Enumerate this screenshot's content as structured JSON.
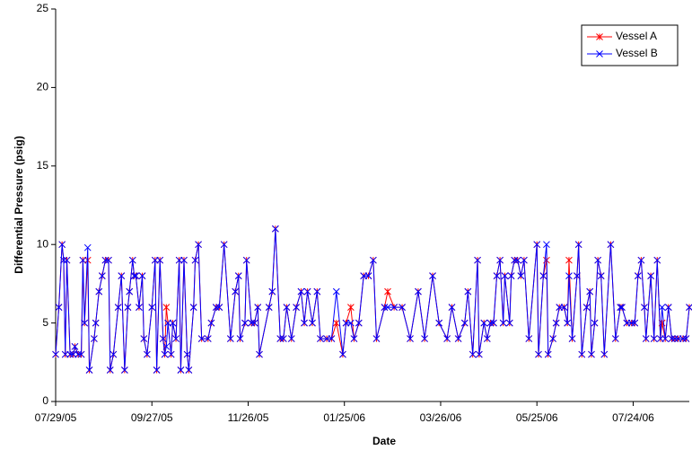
{
  "chart_data": {
    "type": "line",
    "xlabel": "Date",
    "ylabel": "Differential Pressure (psig)",
    "x": [
      "07/29/05",
      "07/31/05",
      "08/02/05",
      "08/03/05",
      "08/04/05",
      "08/05/05",
      "08/07/05",
      "08/09/05",
      "08/10/05",
      "08/12/05",
      "08/14/05",
      "08/15/05",
      "08/16/05",
      "08/18/05",
      "08/19/05",
      "08/22/05",
      "08/23/05",
      "08/25/05",
      "08/27/05",
      "08/29/05",
      "08/31/05",
      "09/01/05",
      "09/03/05",
      "09/06/05",
      "09/08/05",
      "09/10/05",
      "09/12/05",
      "09/13/05",
      "09/15/05",
      "09/16/05",
      "09/17/05",
      "09/19/05",
      "09/21/05",
      "09/22/05",
      "09/24/05",
      "09/27/05",
      "09/29/05",
      "09/30/05",
      "10/02/05",
      "10/04/05",
      "10/05/05",
      "10/06/05",
      "10/07/05",
      "10/09/05",
      "10/10/05",
      "10/12/05",
      "10/14/05",
      "10/15/05",
      "10/17/05",
      "10/19/05",
      "10/20/05",
      "10/23/05",
      "10/24/05",
      "10/26/05",
      "10/28/05",
      "11/01/05",
      "11/03/05",
      "11/06/05",
      "11/08/05",
      "11/11/05",
      "11/15/05",
      "11/18/05",
      "11/20/05",
      "11/21/05",
      "11/24/05",
      "11/25/05",
      "11/28/05",
      "11/30/05",
      "12/02/05",
      "12/03/05",
      "12/09/05",
      "12/11/05",
      "12/13/05",
      "12/16/05",
      "12/18/05",
      "12/20/05",
      "12/23/05",
      "12/26/05",
      "12/29/05",
      "12/31/05",
      "01/02/06",
      "01/05/06",
      "01/08/06",
      "01/10/06",
      "01/14/06",
      "01/17/06",
      "01/20/06",
      "01/24/06",
      "01/26/06",
      "01/29/06",
      "01/31/06",
      "02/03/06",
      "02/06/06",
      "02/09/06",
      "02/12/06",
      "02/14/06",
      "02/19/06",
      "02/21/06",
      "02/25/06",
      "03/02/06",
      "03/07/06",
      "03/12/06",
      "03/16/06",
      "03/21/06",
      "03/25/06",
      "03/30/06",
      "04/02/06",
      "04/06/06",
      "04/10/06",
      "04/12/06",
      "04/15/06",
      "04/18/06",
      "04/19/06",
      "04/22/06",
      "04/24/06",
      "04/26/06",
      "04/28/06",
      "04/30/06",
      "05/02/06",
      "05/04/06",
      "05/05/06",
      "05/08/06",
      "05/09/06",
      "05/11/06",
      "05/13/06",
      "05/15/06",
      "05/17/06",
      "05/20/06",
      "05/25/06",
      "05/26/06",
      "05/29/06",
      "05/31/06",
      "06/01/06",
      "06/04/06",
      "06/06/06",
      "06/08/06",
      "06/11/06",
      "06/13/06",
      "06/14/06",
      "06/16/06",
      "06/19/06",
      "06/20/06",
      "06/22/06",
      "06/25/06",
      "06/27/06",
      "06/28/06",
      "06/30/06",
      "07/02/06",
      "07/04/06",
      "07/06/06",
      "07/10/06",
      "07/13/06",
      "07/16/06",
      "07/17/06",
      "07/20/06",
      "07/23/06",
      "07/25/06",
      "07/27/06",
      "07/29/06",
      "07/31/06",
      "08/01/06",
      "08/04/06",
      "08/06/06",
      "08/08/06",
      "08/10/06",
      "08/11/06",
      "08/13/06",
      "08/15/06",
      "08/17/06",
      "08/19/06",
      "08/21/06",
      "08/24/06",
      "08/26/06",
      "08/28/06"
    ],
    "series": [
      {
        "name": "Vessel A",
        "color": "#ff0000",
        "marker": "asterisk",
        "values": [
          3,
          6,
          10,
          9,
          3,
          9,
          3,
          3,
          3.5,
          3,
          3,
          9,
          5,
          9,
          2,
          4,
          5,
          7,
          8,
          9,
          9,
          2,
          3,
          6,
          8,
          2,
          6,
          7,
          9,
          8,
          8,
          6,
          8,
          4,
          3,
          6,
          9,
          2,
          9,
          4,
          3,
          6,
          5,
          3,
          5,
          4,
          9,
          2,
          9,
          3,
          2,
          6,
          9,
          10,
          4,
          4,
          5,
          6,
          6,
          10,
          4,
          7,
          8,
          4,
          5,
          9,
          5,
          5,
          6,
          3,
          6,
          7,
          11,
          4,
          4,
          6,
          4,
          6,
          7,
          5,
          7,
          5,
          7,
          4,
          4,
          4,
          5,
          3,
          5,
          6,
          4,
          5,
          8,
          8,
          9,
          4,
          6,
          7,
          6,
          6,
          4,
          7,
          4,
          8,
          5,
          4,
          6,
          4,
          5,
          7,
          3,
          9,
          3,
          5,
          4,
          5,
          5,
          8,
          9,
          5,
          8,
          5,
          8,
          9,
          9,
          8,
          9,
          4,
          10,
          3,
          8,
          9,
          3,
          4,
          5,
          6,
          6,
          5,
          9,
          4,
          8,
          10,
          3,
          6,
          7,
          3,
          5,
          9,
          8,
          3,
          10,
          4,
          6,
          6,
          5,
          5,
          5,
          8,
          9,
          6,
          4,
          8,
          4,
          9,
          4,
          5,
          4,
          6,
          4,
          4,
          4,
          4,
          4,
          6
        ]
      },
      {
        "name": "Vessel B",
        "color": "#0000ff",
        "marker": "x",
        "values": [
          3,
          6,
          10,
          9,
          3,
          9,
          3,
          3,
          3.5,
          3,
          3,
          9,
          5,
          9.8,
          2,
          4,
          5,
          7,
          8,
          9,
          9,
          2,
          3,
          6,
          8,
          2,
          6,
          7,
          9,
          8,
          8,
          6,
          8,
          4,
          3,
          6,
          9,
          2,
          9,
          4,
          3,
          3.5,
          5,
          3,
          5,
          4,
          9,
          2,
          9,
          3,
          2,
          6,
          9,
          10,
          4,
          4,
          5,
          6,
          6,
          10,
          4,
          7,
          8,
          4,
          5,
          9,
          5,
          5,
          6,
          3,
          6,
          7,
          11,
          4,
          4,
          6,
          4,
          6,
          7,
          5,
          7,
          5,
          7,
          4,
          4,
          4,
          7,
          3,
          5,
          5,
          4,
          5,
          8,
          8,
          9,
          4,
          6,
          6,
          6,
          6,
          4,
          7,
          4,
          8,
          5,
          4,
          6,
          4,
          5,
          7,
          3,
          9,
          3,
          5,
          4,
          5,
          5,
          8,
          9,
          5,
          8,
          5,
          8,
          9,
          9,
          8,
          9,
          4,
          10,
          3,
          8,
          10,
          3,
          4,
          5,
          6,
          6,
          5,
          8,
          4,
          8,
          10,
          3,
          6,
          7,
          3,
          5,
          9,
          8,
          3,
          10,
          4,
          6,
          6,
          5,
          5,
          5,
          8,
          9,
          6,
          4,
          8,
          4,
          9,
          4,
          6,
          4,
          6,
          4,
          4,
          4,
          4,
          4,
          6
        ]
      }
    ],
    "xlim": [
      "07/29/05",
      "08/28/06"
    ],
    "xticks": [
      "07/29/05",
      "09/27/05",
      "11/26/05",
      "01/25/06",
      "03/26/06",
      "05/25/06",
      "07/24/06"
    ],
    "ylim": [
      0,
      25
    ],
    "yticks": [
      0,
      5,
      10,
      15,
      20,
      25
    ],
    "grid": false,
    "legend": "upper right"
  }
}
